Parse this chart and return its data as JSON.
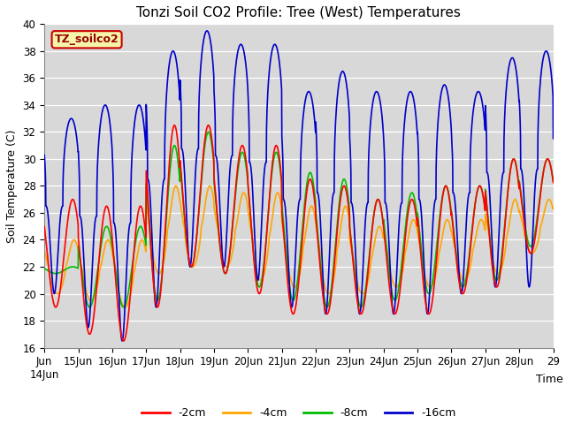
{
  "title": "Tonzi Soil CO2 Profile: Tree (West) Temperatures",
  "xlabel": "Time",
  "ylabel": "Soil Temperature (C)",
  "ylim": [
    16,
    40
  ],
  "xlim": [
    0,
    360
  ],
  "bg_color": "#d8d8d8",
  "fig_color": "#ffffff",
  "legend_label": "TZ_soilco2",
  "lines": [
    {
      "label": "-2cm",
      "color": "#ff0000"
    },
    {
      "label": "-4cm",
      "color": "#ffa500"
    },
    {
      "label": "-8cm",
      "color": "#00bb00"
    },
    {
      "label": "-16cm",
      "color": "#0000cc"
    }
  ],
  "x_tick_positions": [
    0,
    24,
    48,
    72,
    96,
    120,
    144,
    168,
    192,
    216,
    240,
    264,
    288,
    312,
    336,
    360
  ],
  "x_tick_labels": [
    "Jun\n14Jun",
    "15Jun",
    "16Jun",
    "17Jun",
    "18Jun",
    "19Jun",
    "20Jun",
    "21Jun",
    "22Jun",
    "23Jun",
    "24Jun",
    "25Jun",
    "26Jun",
    "27Jun",
    "28Jun",
    "29"
  ],
  "y_ticks": [
    16,
    18,
    20,
    22,
    24,
    26,
    28,
    30,
    32,
    34,
    36,
    38,
    40
  ],
  "num_hours": 360,
  "samples_per_hour": 6,
  "font_family": "DejaVu Sans",
  "title_fontsize": 11,
  "axis_fontsize": 9,
  "tick_fontsize": 8.5
}
